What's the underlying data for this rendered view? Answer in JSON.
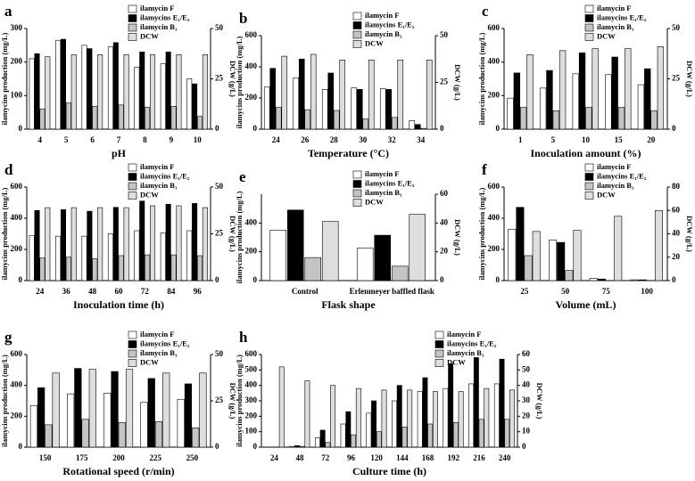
{
  "chart_data": [
    {
      "type": "bar",
      "title": "a",
      "xlabel": "pH",
      "ylabel": "ilamycins production (mg/L)",
      "y2label": "DCW (g/L)",
      "categories": [
        "4",
        "5",
        "6",
        "7",
        "8",
        "9",
        "10"
      ],
      "ylim": [
        0,
        300
      ],
      "yticks": [
        0,
        100,
        200,
        300
      ],
      "y2lim": [
        0,
        50
      ],
      "y2ticks": [
        0,
        25,
        50
      ],
      "series": [
        {
          "name": "ilamycin F",
          "color": "#ffffff",
          "values": [
            210,
            265,
            250,
            245,
            185,
            195,
            150
          ]
        },
        {
          "name": "ilamycins E₁/E₂",
          "color": "#000000",
          "values": [
            225,
            268,
            240,
            258,
            230,
            230,
            135
          ]
        },
        {
          "name": "ilamycin B₁",
          "color": "#c4c4c4",
          "values": [
            60,
            78,
            68,
            72,
            65,
            68,
            38
          ]
        },
        {
          "name": "DCW",
          "color": "#dedede",
          "axis": "y2",
          "values": [
            36,
            37,
            37,
            37,
            37,
            37,
            37
          ]
        }
      ]
    },
    {
      "type": "bar",
      "title": "b",
      "xlabel": "Temperature (°C)",
      "ylabel": "ilamycins production (mg/L)",
      "y2label": "DCW (g/L)",
      "categories": [
        "24",
        "26",
        "28",
        "30",
        "32",
        "34"
      ],
      "ylim": [
        0,
        600
      ],
      "yticks": [
        0,
        200,
        400,
        600
      ],
      "y2lim": [
        0,
        50
      ],
      "y2ticks": [
        0,
        25,
        50
      ],
      "series": [
        {
          "name": "ilamycin F",
          "color": "#ffffff",
          "values": [
            270,
            330,
            255,
            265,
            260,
            55
          ]
        },
        {
          "name": "ilamycins E₁/E₂",
          "color": "#000000",
          "values": [
            390,
            450,
            360,
            255,
            255,
            30
          ]
        },
        {
          "name": "ilamycin B₁",
          "color": "#c4c4c4",
          "values": [
            140,
            125,
            120,
            65,
            75,
            5
          ]
        },
        {
          "name": "DCW",
          "color": "#dedede",
          "axis": "y2",
          "values": [
            39,
            40,
            37,
            37,
            37,
            37
          ]
        }
      ]
    },
    {
      "type": "bar",
      "title": "c",
      "xlabel": "Inoculation amount (%)",
      "ylabel": "ilamycins production (mg/L)",
      "y2label": "DCW (g/L)",
      "categories": [
        "1",
        "5",
        "10",
        "15",
        "20"
      ],
      "ylim": [
        0,
        600
      ],
      "yticks": [
        0,
        200,
        400,
        600
      ],
      "y2lim": [
        0,
        50
      ],
      "y2ticks": [
        0,
        25,
        50
      ],
      "series": [
        {
          "name": "ilamycin F",
          "color": "#ffffff",
          "values": [
            185,
            245,
            330,
            325,
            265
          ]
        },
        {
          "name": "ilamycins E₁/E₂",
          "color": "#000000",
          "values": [
            335,
            350,
            455,
            430,
            360
          ]
        },
        {
          "name": "ilamycin B₁",
          "color": "#c4c4c4",
          "values": [
            130,
            110,
            130,
            130,
            110
          ]
        },
        {
          "name": "DCW",
          "color": "#dedede",
          "axis": "y2",
          "values": [
            37,
            39,
            40,
            40,
            41
          ]
        }
      ]
    },
    {
      "type": "bar",
      "title": "d",
      "xlabel": "Inoculation time (h)",
      "ylabel": "ilamycins production (mg/L)",
      "y2label": "DCW (g/L)",
      "categories": [
        "24",
        "36",
        "48",
        "60",
        "72",
        "84",
        "96"
      ],
      "ylim": [
        0,
        600
      ],
      "yticks": [
        0,
        200,
        400,
        600
      ],
      "y2lim": [
        0,
        50
      ],
      "y2ticks": [
        0,
        25,
        50
      ],
      "series": [
        {
          "name": "ilamycin F",
          "color": "#ffffff",
          "values": [
            290,
            285,
            285,
            300,
            320,
            305,
            320
          ]
        },
        {
          "name": "ilamycins E₁/E₂",
          "color": "#000000",
          "values": [
            450,
            455,
            445,
            470,
            510,
            490,
            495
          ]
        },
        {
          "name": "ilamycin B₁",
          "color": "#c4c4c4",
          "values": [
            145,
            150,
            140,
            160,
            165,
            165,
            160
          ]
        },
        {
          "name": "DCW",
          "color": "#dedede",
          "axis": "y2",
          "values": [
            39,
            39,
            39,
            39,
            40,
            40,
            39
          ]
        }
      ]
    },
    {
      "type": "bar",
      "title": "e",
      "xlabel": "Flask shape",
      "ylabel": "ilamycins production (mg/L)",
      "y2label": "DCW (g/L)",
      "categories": [
        "Control",
        "Erlenmeyer baffled flask"
      ],
      "ylim": [
        0,
        600
      ],
      "yticks": [
        0,
        200,
        400
      ],
      "y2lim": [
        0,
        60
      ],
      "y2ticks": [
        0,
        20,
        40,
        60
      ],
      "series": [
        {
          "name": "ilamycin F",
          "color": "#ffffff",
          "values": [
            350,
            225
          ]
        },
        {
          "name": "ilamycins E₁/E₂",
          "color": "#000000",
          "values": [
            490,
            315
          ]
        },
        {
          "name": "ilamycin B₁",
          "color": "#c4c4c4",
          "values": [
            160,
            100
          ]
        },
        {
          "name": "DCW",
          "color": "#dedede",
          "axis": "y2",
          "values": [
            41,
            46
          ]
        }
      ]
    },
    {
      "type": "bar",
      "title": "f",
      "xlabel": "Volume (mL)",
      "ylabel": "ilamycins production (mg/L)",
      "y2label": "DCW (g/L)",
      "categories": [
        "25",
        "50",
        "75",
        "100"
      ],
      "ylim": [
        0,
        600
      ],
      "yticks": [
        0,
        200,
        400,
        600
      ],
      "y2lim": [
        0,
        80
      ],
      "y2ticks": [
        0,
        20,
        40,
        60,
        80
      ],
      "series": [
        {
          "name": "ilamycin F",
          "color": "#ffffff",
          "values": [
            330,
            260,
            15,
            5
          ]
        },
        {
          "name": "ilamycins E₁/E₂",
          "color": "#000000",
          "values": [
            470,
            245,
            10,
            5
          ]
        },
        {
          "name": "ilamycin B₁",
          "color": "#c4c4c4",
          "values": [
            160,
            65,
            0,
            0
          ]
        },
        {
          "name": "DCW",
          "color": "#dedede",
          "axis": "y2",
          "values": [
            42,
            43,
            55,
            60
          ]
        }
      ]
    },
    {
      "type": "bar",
      "title": "g",
      "xlabel": "Rotational speed (r/min)",
      "ylabel": "ilamycins production (mg/L)",
      "y2label": "DCW (g/L)",
      "categories": [
        "150",
        "175",
        "200",
        "225",
        "250"
      ],
      "ylim": [
        0,
        600
      ],
      "yticks": [
        0,
        200,
        400,
        600
      ],
      "y2lim": [
        0,
        50
      ],
      "y2ticks": [
        0,
        25,
        50
      ],
      "series": [
        {
          "name": "ilamycin F",
          "color": "#ffffff",
          "values": [
            270,
            345,
            350,
            290,
            310
          ]
        },
        {
          "name": "ilamycins E₁/E₂",
          "color": "#000000",
          "values": [
            385,
            510,
            490,
            445,
            410
          ]
        },
        {
          "name": "ilamycin B₁",
          "color": "#c4c4c4",
          "values": [
            145,
            180,
            160,
            165,
            125
          ]
        },
        {
          "name": "DCW",
          "color": "#dedede",
          "axis": "y2",
          "values": [
            40,
            42,
            42,
            40,
            40
          ]
        }
      ]
    },
    {
      "type": "bar",
      "title": "h",
      "xlabel": "Culture time (h)",
      "ylabel": "ilamycins production (mg/L)",
      "y2label": "DCW (g/L)",
      "categories": [
        "24",
        "48",
        "72",
        "96",
        "120",
        "144",
        "168",
        "192",
        "216",
        "240"
      ],
      "ylim": [
        0,
        600
      ],
      "yticks": [
        0,
        100,
        200,
        300,
        400,
        500,
        600
      ],
      "y2lim": [
        0,
        60
      ],
      "y2ticks": [
        0,
        10,
        20,
        30,
        40,
        50,
        60
      ],
      "series": [
        {
          "name": "ilamycin F",
          "color": "#ffffff",
          "values": [
            0,
            5,
            60,
            150,
            220,
            300,
            360,
            380,
            410,
            410
          ]
        },
        {
          "name": "ilamycins E₁/E₂",
          "color": "#000000",
          "values": [
            0,
            10,
            110,
            230,
            300,
            400,
            450,
            540,
            580,
            570
          ]
        },
        {
          "name": "ilamycin B₁",
          "color": "#c4c4c4",
          "values": [
            0,
            5,
            30,
            80,
            100,
            130,
            150,
            160,
            180,
            180
          ]
        },
        {
          "name": "DCW",
          "color": "#dedede",
          "axis": "y2",
          "values": [
            52,
            43,
            40,
            38,
            37,
            37,
            36,
            36,
            38,
            37
          ]
        }
      ]
    }
  ]
}
